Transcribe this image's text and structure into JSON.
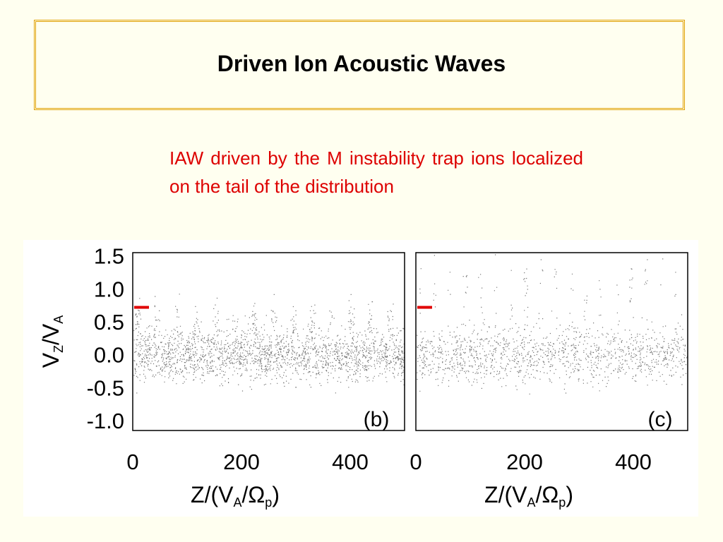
{
  "slide": {
    "title": "Driven Ion Acoustic Waves",
    "text": "IAW driven by the M instability trap ions localized on the tail of the distribution",
    "colors": {
      "background": "#fffff0",
      "border": "#e0a000",
      "text": "#dd0000",
      "marker": "#e00000"
    }
  },
  "chart_data": [
    {
      "type": "scatter",
      "panel_label": "(b)",
      "xlabel_base": "Z/(V",
      "xlabel_sub1": "A",
      "xlabel_mid": "/Ω",
      "xlabel_sub2": "p",
      "xlabel_end": ")",
      "ylabel_base": "V",
      "ylabel_sub1": "Z",
      "ylabel_mid": "/V",
      "ylabel_sub2": "A",
      "xticks": [
        "0",
        "200",
        "400"
      ],
      "yticks": [
        "1.5",
        "1.0",
        "0.5",
        "0.0",
        "-0.5",
        "-1.0"
      ],
      "xlim": [
        0,
        500
      ],
      "ylim": [
        -1.15,
        1.55
      ],
      "marker_y": 0.72
    },
    {
      "type": "scatter",
      "panel_label": "(c)",
      "xlabel_base": "Z/(V",
      "xlabel_sub1": "A",
      "xlabel_mid": "/Ω",
      "xlabel_sub2": "p",
      "xlabel_end": ")",
      "xticks": [
        "0",
        "200",
        "400"
      ],
      "xlim": [
        0,
        500
      ],
      "ylim": [
        -1.15,
        1.55
      ],
      "marker_y": 0.72
    }
  ]
}
